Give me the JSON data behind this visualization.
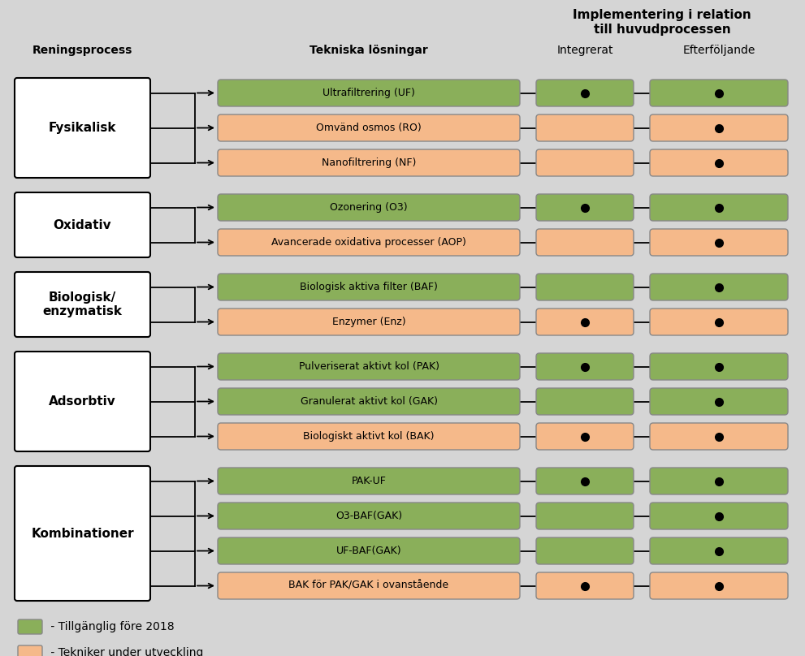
{
  "background_color": "#d5d5d5",
  "green_color": "#8aaf5a",
  "salmon_color": "#f5b98a",
  "white_color": "#ffffff",
  "box_edge_color": "#888888",
  "header_title_line1": "Implementering i relation",
  "header_title_line2": "till huvudprocessen",
  "col_integrerat": "Integrerat",
  "col_efterfoljande": "Efterföljande",
  "col_reningsprocess": "Reningsprocess",
  "col_tekniska": "Tekniska lösningar",
  "legend_green": " - Tillgänglig före 2018",
  "legend_salmon": " - Tekniker under utveckling",
  "groups": [
    {
      "label": "Fysikalisk",
      "items": [
        {
          "text": "Ultrafiltrering (UF)",
          "color": "green",
          "integrerat": true,
          "efterfoljande": true
        },
        {
          "text": "Omvänd osmos (RO)",
          "color": "salmon",
          "integrerat": false,
          "efterfoljande": true
        },
        {
          "text": "Nanofiltrering (NF)",
          "color": "salmon",
          "integrerat": false,
          "efterfoljande": true
        }
      ]
    },
    {
      "label": "Oxidativ",
      "items": [
        {
          "text": "Ozonering (O3)",
          "color": "green",
          "integrerat": true,
          "efterfoljande": true
        },
        {
          "text": "Avancerade oxidativa processer (AOP)",
          "color": "salmon",
          "integrerat": false,
          "efterfoljande": true
        }
      ]
    },
    {
      "label": "Biologisk/\nenzymatisk",
      "items": [
        {
          "text": "Biologisk aktiva filter (BAF)",
          "color": "green",
          "integrerat": false,
          "efterfoljande": true
        },
        {
          "text": "Enzymer (Enz)",
          "color": "salmon",
          "integrerat": true,
          "efterfoljande": true
        }
      ]
    },
    {
      "label": "Adsorbtiv",
      "items": [
        {
          "text": "Pulveriserat aktivt kol (PAK)",
          "color": "green",
          "integrerat": true,
          "efterfoljande": true
        },
        {
          "text": "Granulerat aktivt kol (GAK)",
          "color": "green",
          "integrerat": false,
          "efterfoljande": true
        },
        {
          "text": "Biologiskt aktivt kol (BAK)",
          "color": "salmon",
          "integrerat": true,
          "efterfoljande": true
        }
      ]
    },
    {
      "label": "Kombinationer",
      "items": [
        {
          "text": "PAK-UF",
          "color": "green",
          "integrerat": true,
          "efterfoljande": true
        },
        {
          "text": "O3-BAF(GAK)",
          "color": "green",
          "integrerat": false,
          "efterfoljande": true
        },
        {
          "text": "UF-BAF(GAK)",
          "color": "green",
          "integrerat": false,
          "efterfoljande": true
        },
        {
          "text": "BAK för PAK/GAK i ovanstående",
          "color": "salmon",
          "integrerat": true,
          "efterfoljande": true
        }
      ]
    }
  ]
}
